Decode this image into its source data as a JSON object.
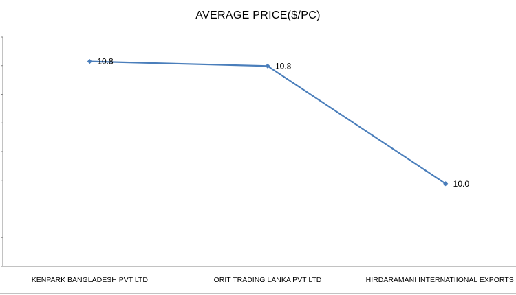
{
  "chart_data": {
    "type": "line",
    "title": "AVERAGE PRICE($/PC)",
    "categories": [
      "KENPARK BANGLADESH PVT LTD",
      "ORIT TRADING LANKA PVT LTD",
      "HIRDARAMANI INTERNATIIONAL EXPORTS PV"
    ],
    "series": [
      {
        "values": [
          10.84,
          10.81,
          10.04
        ],
        "data_labels": [
          "10.8",
          "10.8",
          "10.0"
        ]
      }
    ],
    "ylim": [
      9.5,
      11.0
    ],
    "line_color": "#4a7ebb",
    "grid": false,
    "legend": "none"
  }
}
